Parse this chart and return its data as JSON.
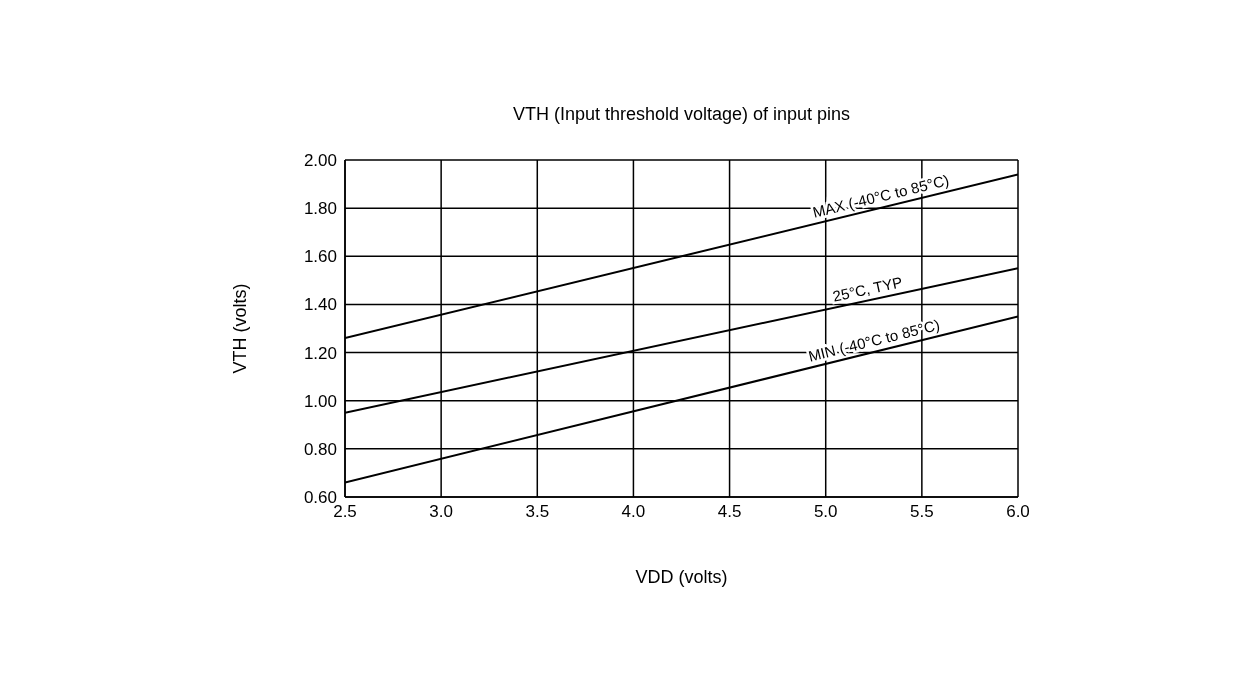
{
  "chart_data": {
    "type": "line",
    "title": "VTH (Input threshold voltage) of input pins",
    "xlabel": "VDD (volts)",
    "ylabel": "VTH (volts)",
    "x": [
      2.5,
      6.0
    ],
    "series": [
      {
        "name": "MAX (-40°C to 85°C)",
        "color": "#000000",
        "values": [
          1.26,
          1.94
        ]
      },
      {
        "name": "25°C, TYP",
        "color": "#000000",
        "values": [
          0.95,
          1.55
        ]
      },
      {
        "name": "MIN (-40°C to 85°C)",
        "color": "#000000",
        "values": [
          0.66,
          1.35
        ]
      }
    ],
    "xlim": [
      2.5,
      6.0
    ],
    "xticks": [
      {
        "value": 2.5,
        "label": "2.5"
      },
      {
        "value": 3,
        "label": "3.0"
      },
      {
        "value": 3.5,
        "label": "3.5"
      },
      {
        "value": 4,
        "label": "4.0"
      },
      {
        "value": 4.5,
        "label": "4.5"
      },
      {
        "value": 5,
        "label": "5.0"
      },
      {
        "value": 5.5,
        "label": "5.5"
      },
      {
        "value": 6,
        "label": "6.0"
      }
    ],
    "ylim": [
      0.6,
      2.0
    ],
    "yticks": [
      {
        "value": 0.6,
        "label": "0.60"
      },
      {
        "value": 0.8,
        "label": "0.80"
      },
      {
        "value": 1.0,
        "label": "1.00"
      },
      {
        "value": 1.2,
        "label": "1.20"
      },
      {
        "value": 1.4,
        "label": "1.40"
      },
      {
        "value": 1.6,
        "label": "1.60"
      },
      {
        "value": 1.8,
        "label": "1.80"
      },
      {
        "value": 2.0,
        "label": "2.00"
      }
    ],
    "grid": true,
    "marker": "none",
    "line_style": "solid"
  }
}
